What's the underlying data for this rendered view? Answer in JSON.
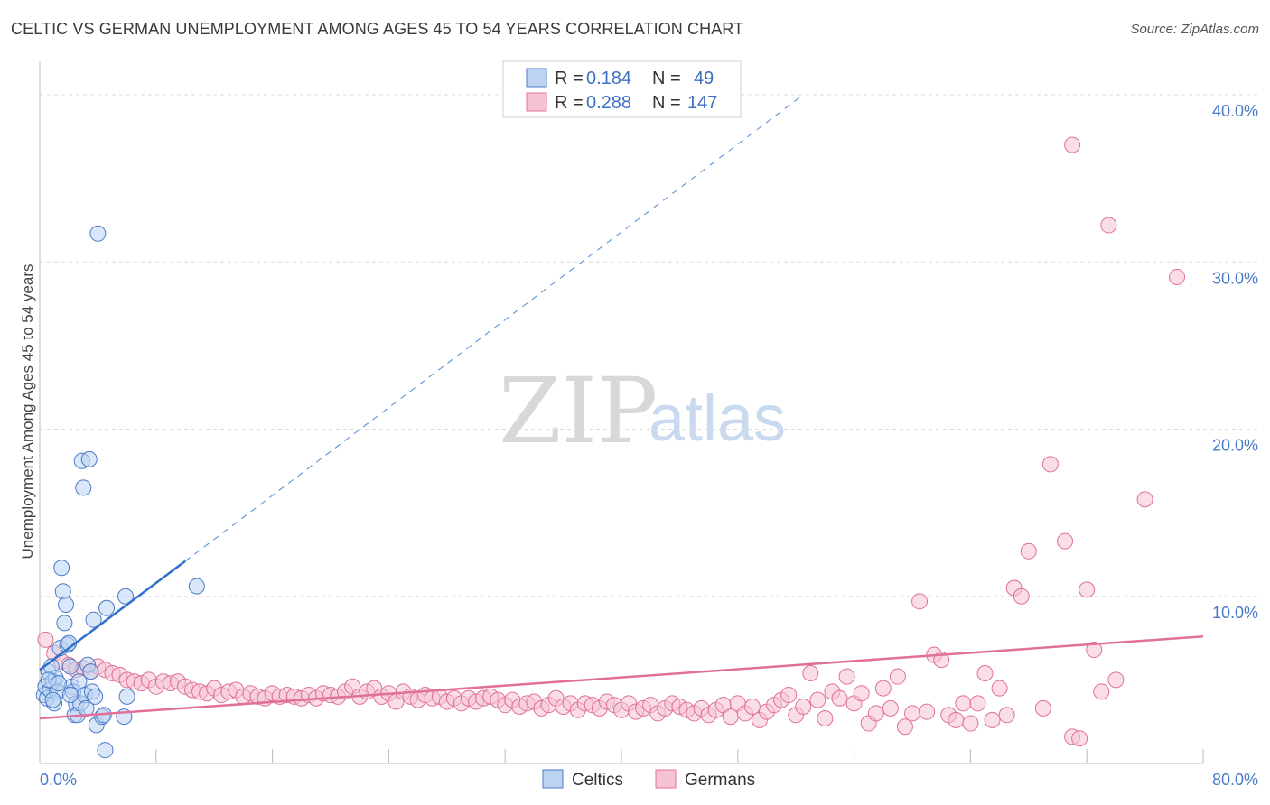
{
  "title": "CELTIC VS GERMAN UNEMPLOYMENT AMONG AGES 45 TO 54 YEARS CORRELATION CHART",
  "source": "Source: ZipAtlas.com",
  "watermark": {
    "zip": "ZIP",
    "atlas": "atlas"
  },
  "colors": {
    "celtic": "#4a7bc8",
    "celtic_fill": "#bcd3f2",
    "german": "#e0709a",
    "german_fill": "#f6c3d4"
  },
  "legend": {
    "rows": [
      {
        "r_label": "R =",
        "r_value": "0.184",
        "n_label": "N =",
        "n_value": "49"
      },
      {
        "r_label": "R =",
        "r_value": "0.288",
        "n_label": "N =",
        "n_value": "147"
      }
    ]
  },
  "chart_data": {
    "type": "scatter",
    "title": "CELTIC VS GERMAN UNEMPLOYMENT AMONG AGES 45 TO 54 YEARS CORRELATION CHART",
    "ylabel": "Unemployment Among Ages 45 to 54 years",
    "xlabel": "",
    "xlim": [
      0,
      80
    ],
    "ylim": [
      0,
      42
    ],
    "x_tick_labels": [
      "0.0%",
      "80.0%"
    ],
    "y_ticks": [
      10,
      20,
      30,
      40
    ],
    "y_tick_labels": [
      "10.0%",
      "20.0%",
      "30.0%",
      "40.0%"
    ],
    "legend_labels": [
      "Celtics",
      "Germans"
    ],
    "series": [
      {
        "name": "Celtics",
        "R": 0.184,
        "N": 49,
        "trend": {
          "x": [
            0,
            10
          ],
          "y": [
            5.6,
            12.1
          ]
        },
        "trend_extended": {
          "x": [
            10,
            52.5
          ],
          "y": [
            12.1,
            40.0
          ]
        },
        "points": [
          [
            0.3,
            4.1
          ],
          [
            0.4,
            4.6
          ],
          [
            0.5,
            3.9
          ],
          [
            0.6,
            5.5
          ],
          [
            0.7,
            4.4
          ],
          [
            0.8,
            5.8
          ],
          [
            0.9,
            4.9
          ],
          [
            1.0,
            3.6
          ],
          [
            1.1,
            5.1
          ],
          [
            1.2,
            4.3
          ],
          [
            1.4,
            6.9
          ],
          [
            1.5,
            11.7
          ],
          [
            1.6,
            10.3
          ],
          [
            1.7,
            8.4
          ],
          [
            1.8,
            9.5
          ],
          [
            1.9,
            7.1
          ],
          [
            2.0,
            7.2
          ],
          [
            2.1,
            5.8
          ],
          [
            2.2,
            4.6
          ],
          [
            2.3,
            4.3
          ],
          [
            2.4,
            2.9
          ],
          [
            2.5,
            3.6
          ],
          [
            2.6,
            2.9
          ],
          [
            2.7,
            4.9
          ],
          [
            2.8,
            3.6
          ],
          [
            2.9,
            18.1
          ],
          [
            3.0,
            16.5
          ],
          [
            3.1,
            4.1
          ],
          [
            3.2,
            3.3
          ],
          [
            3.3,
            5.9
          ],
          [
            3.4,
            18.2
          ],
          [
            3.5,
            5.5
          ],
          [
            3.6,
            4.3
          ],
          [
            3.7,
            8.6
          ],
          [
            3.8,
            4.0
          ],
          [
            3.9,
            2.3
          ],
          [
            4.0,
            31.7
          ],
          [
            4.3,
            2.8
          ],
          [
            4.5,
            0.8
          ],
          [
            4.6,
            9.3
          ],
          [
            4.4,
            2.9
          ],
          [
            5.9,
            10.0
          ],
          [
            6.0,
            4.0
          ],
          [
            5.8,
            2.8
          ],
          [
            10.8,
            10.6
          ],
          [
            0.6,
            5.0
          ],
          [
            0.9,
            3.8
          ],
          [
            1.3,
            4.8
          ],
          [
            2.1,
            4.1
          ]
        ]
      },
      {
        "name": "Germans",
        "R": 0.288,
        "N": 147,
        "trend": {
          "x": [
            0,
            80
          ],
          "y": [
            2.7,
            7.6
          ]
        },
        "points": [
          [
            0.4,
            7.4
          ],
          [
            1.0,
            6.6
          ],
          [
            1.5,
            6.1
          ],
          [
            2.0,
            5.9
          ],
          [
            2.5,
            5.6
          ],
          [
            3.0,
            5.7
          ],
          [
            3.5,
            5.5
          ],
          [
            4.0,
            5.8
          ],
          [
            4.5,
            5.6
          ],
          [
            5.0,
            5.4
          ],
          [
            5.5,
            5.3
          ],
          [
            6.0,
            5.0
          ],
          [
            6.5,
            4.9
          ],
          [
            7.0,
            4.8
          ],
          [
            7.5,
            5.0
          ],
          [
            8.0,
            4.6
          ],
          [
            8.5,
            4.9
          ],
          [
            9.0,
            4.8
          ],
          [
            9.5,
            4.9
          ],
          [
            10.0,
            4.6
          ],
          [
            10.5,
            4.4
          ],
          [
            11.0,
            4.3
          ],
          [
            11.5,
            4.2
          ],
          [
            12.0,
            4.5
          ],
          [
            12.5,
            4.1
          ],
          [
            13.0,
            4.3
          ],
          [
            13.5,
            4.4
          ],
          [
            14.0,
            4.0
          ],
          [
            14.5,
            4.2
          ],
          [
            15.0,
            4.0
          ],
          [
            15.5,
            3.9
          ],
          [
            16.0,
            4.2
          ],
          [
            16.5,
            4.0
          ],
          [
            17.0,
            4.1
          ],
          [
            17.5,
            4.0
          ],
          [
            18.0,
            3.9
          ],
          [
            18.5,
            4.1
          ],
          [
            19.0,
            3.9
          ],
          [
            19.5,
            4.2
          ],
          [
            20.0,
            4.1
          ],
          [
            20.5,
            4.0
          ],
          [
            21.0,
            4.3
          ],
          [
            21.5,
            4.6
          ],
          [
            22.0,
            4.0
          ],
          [
            22.5,
            4.3
          ],
          [
            23.0,
            4.5
          ],
          [
            23.5,
            4.0
          ],
          [
            24.0,
            4.2
          ],
          [
            24.5,
            3.7
          ],
          [
            25.0,
            4.3
          ],
          [
            25.5,
            4.0
          ],
          [
            26.0,
            3.8
          ],
          [
            26.5,
            4.1
          ],
          [
            27.0,
            3.9
          ],
          [
            27.5,
            4.0
          ],
          [
            28.0,
            3.7
          ],
          [
            28.5,
            3.9
          ],
          [
            29.0,
            3.6
          ],
          [
            29.5,
            3.9
          ],
          [
            30.0,
            3.7
          ],
          [
            30.5,
            3.9
          ],
          [
            31.0,
            4.0
          ],
          [
            31.5,
            3.8
          ],
          [
            32.0,
            3.5
          ],
          [
            32.5,
            3.8
          ],
          [
            33.0,
            3.4
          ],
          [
            33.5,
            3.6
          ],
          [
            34.0,
            3.7
          ],
          [
            34.5,
            3.3
          ],
          [
            35.0,
            3.5
          ],
          [
            35.5,
            3.9
          ],
          [
            36.0,
            3.4
          ],
          [
            36.5,
            3.6
          ],
          [
            37.0,
            3.2
          ],
          [
            37.5,
            3.6
          ],
          [
            38.0,
            3.5
          ],
          [
            38.5,
            3.3
          ],
          [
            39.0,
            3.7
          ],
          [
            39.5,
            3.5
          ],
          [
            40.0,
            3.2
          ],
          [
            40.5,
            3.6
          ],
          [
            41.0,
            3.1
          ],
          [
            41.5,
            3.3
          ],
          [
            42.0,
            3.5
          ],
          [
            42.5,
            3.0
          ],
          [
            43.0,
            3.3
          ],
          [
            43.5,
            3.6
          ],
          [
            44.0,
            3.4
          ],
          [
            44.5,
            3.2
          ],
          [
            45.0,
            3.0
          ],
          [
            45.5,
            3.3
          ],
          [
            46.0,
            2.9
          ],
          [
            46.5,
            3.2
          ],
          [
            47.0,
            3.5
          ],
          [
            47.5,
            2.8
          ],
          [
            48.0,
            3.6
          ],
          [
            48.5,
            3.0
          ],
          [
            49.0,
            3.4
          ],
          [
            49.5,
            2.6
          ],
          [
            50.0,
            3.1
          ],
          [
            50.5,
            3.5
          ],
          [
            51.0,
            3.8
          ],
          [
            51.5,
            4.1
          ],
          [
            52.0,
            2.9
          ],
          [
            52.5,
            3.4
          ],
          [
            53.0,
            5.4
          ],
          [
            53.5,
            3.8
          ],
          [
            54.0,
            2.7
          ],
          [
            54.5,
            4.3
          ],
          [
            55.0,
            3.9
          ],
          [
            55.5,
            5.2
          ],
          [
            56.0,
            3.6
          ],
          [
            56.5,
            4.2
          ],
          [
            57.0,
            2.4
          ],
          [
            57.5,
            3.0
          ],
          [
            58.0,
            4.5
          ],
          [
            58.5,
            3.3
          ],
          [
            59.0,
            5.2
          ],
          [
            59.5,
            2.2
          ],
          [
            60.0,
            3.0
          ],
          [
            60.5,
            9.7
          ],
          [
            61.0,
            3.1
          ],
          [
            61.5,
            6.5
          ],
          [
            62.0,
            6.2
          ],
          [
            62.5,
            2.9
          ],
          [
            63.0,
            2.6
          ],
          [
            63.5,
            3.6
          ],
          [
            64.0,
            2.4
          ],
          [
            64.5,
            3.6
          ],
          [
            65.0,
            5.4
          ],
          [
            65.5,
            2.6
          ],
          [
            66.0,
            4.5
          ],
          [
            66.5,
            2.9
          ],
          [
            67.0,
            10.5
          ],
          [
            67.5,
            10.0
          ],
          [
            68.0,
            12.7
          ],
          [
            69.0,
            3.3
          ],
          [
            69.5,
            17.9
          ],
          [
            70.5,
            13.3
          ],
          [
            71.0,
            1.6
          ],
          [
            72.0,
            10.4
          ],
          [
            72.5,
            6.8
          ],
          [
            73.0,
            4.3
          ],
          [
            73.5,
            32.2
          ],
          [
            74.0,
            5.0
          ],
          [
            71.0,
            37.0
          ],
          [
            78.2,
            29.1
          ],
          [
            76.0,
            15.8
          ],
          [
            71.5,
            1.5
          ]
        ]
      }
    ]
  }
}
